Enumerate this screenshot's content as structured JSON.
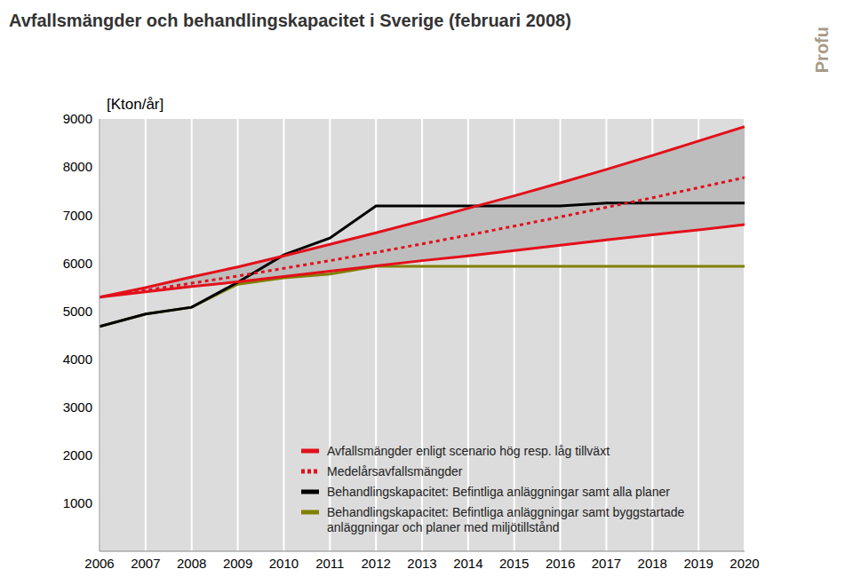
{
  "chart_data": {
    "type": "line",
    "title": "Avfallsmängder och behandlingskapacitet i Sverige (februari 2008)",
    "y_label": "[Kton/år]",
    "logo": "Profu",
    "x": [
      2006,
      2007,
      2008,
      2009,
      2010,
      2011,
      2012,
      2013,
      2014,
      2015,
      2016,
      2017,
      2018,
      2019,
      2020
    ],
    "xlim": [
      2006,
      2020
    ],
    "xticks": [
      2006,
      2007,
      2008,
      2009,
      2010,
      2011,
      2012,
      2013,
      2014,
      2015,
      2016,
      2017,
      2018,
      2019,
      2020
    ],
    "ylim": [
      0,
      9000
    ],
    "yticks": [
      1000,
      2000,
      3000,
      4000,
      5000,
      6000,
      7000,
      8000,
      9000
    ],
    "grid": true,
    "series": [
      {
        "name": "Avfallsmängder enligt scenario hög resp. låg tillväxt",
        "color": "#e3101a",
        "line_style": "solid",
        "values": [
          5290,
          5490,
          5710,
          5920,
          6150,
          6390,
          6630,
          6880,
          7140,
          7400,
          7670,
          7950,
          8240,
          8540,
          8840
        ],
        "low_values": [
          5290,
          5400,
          5510,
          5610,
          5720,
          5830,
          5940,
          6050,
          6150,
          6260,
          6370,
          6480,
          6590,
          6690,
          6800
        ]
      },
      {
        "name": "Medelårsavfallsmängder",
        "color": "#e3101a",
        "line_style": "dotted",
        "values": [
          5290,
          5430,
          5580,
          5730,
          5890,
          6050,
          6220,
          6400,
          6580,
          6770,
          6960,
          7160,
          7360,
          7570,
          7780
        ]
      },
      {
        "name": "Behandlingskapacitet: Befintliga anläggningar samt alla planer",
        "color": "#000000",
        "line_style": "solid",
        "values": [
          4680,
          4940,
          5080,
          5600,
          6170,
          6520,
          7190,
          7190,
          7190,
          7190,
          7190,
          7250,
          7250,
          7250,
          7250
        ]
      },
      {
        "name": "Behandlingskapacitet: Befintliga anläggningar samt byggstartade anläggningar och planer med miljötillstånd",
        "color": "#808000",
        "line_style": "solid",
        "values": [
          4680,
          4940,
          5080,
          5560,
          5690,
          5770,
          5930,
          5930,
          5930,
          5930,
          5930,
          5930,
          5930,
          5930,
          5930
        ]
      }
    ]
  }
}
